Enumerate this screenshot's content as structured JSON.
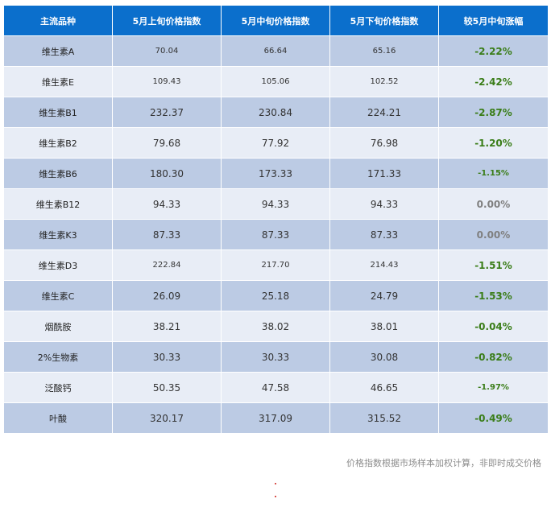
{
  "table": {
    "headers": [
      "主流品种",
      "5月上旬价格指数",
      "5月中旬价格指数",
      "5月下旬价格指数",
      "较5月中旬涨幅"
    ],
    "rows": [
      {
        "name": "维生素A",
        "early": "70.04",
        "mid": "66.64",
        "late": "65.16",
        "change": "-2.22%"
      },
      {
        "name": "维生素E",
        "early": "109.43",
        "mid": "105.06",
        "late": "102.52",
        "change": "-2.42%"
      },
      {
        "name": "维生素B1",
        "early": "232.37",
        "mid": "230.84",
        "late": "224.21",
        "change": "-2.87%"
      },
      {
        "name": "维生素B2",
        "early": "79.68",
        "mid": "77.92",
        "late": "76.98",
        "change": "-1.20%"
      },
      {
        "name": "维生素B6",
        "early": "180.30",
        "mid": "173.33",
        "late": "171.33",
        "change": "-1.15%"
      },
      {
        "name": "维生素B12",
        "early": "94.33",
        "mid": "94.33",
        "late": "94.33",
        "change": "0.00%"
      },
      {
        "name": "维生素K3",
        "early": "87.33",
        "mid": "87.33",
        "late": "87.33",
        "change": "0.00%"
      },
      {
        "name": "维生素D3",
        "early": "222.84",
        "mid": "217.70",
        "late": "214.43",
        "change": "-1.51%"
      },
      {
        "name": "维生素C",
        "early": "26.09",
        "mid": "25.18",
        "late": "24.79",
        "change": "-1.53%"
      },
      {
        "name": "烟酰胺",
        "early": "38.21",
        "mid": "38.02",
        "late": "38.01",
        "change": "-0.04%"
      },
      {
        "name": "2%生物素",
        "early": "30.33",
        "mid": "30.33",
        "late": "30.08",
        "change": "-0.82%"
      },
      {
        "name": "泛酸钙",
        "early": "50.35",
        "mid": "47.58",
        "late": "46.65",
        "change": "-1.97%"
      },
      {
        "name": "叶酸",
        "early": "320.17",
        "mid": "317.09",
        "late": "315.52",
        "change": "-0.49%"
      }
    ]
  },
  "note": "价格指数根据市场样本加权计算，非即时成交价格",
  "colors": {
    "header_bg": "#0b6fcc",
    "row_dark": "#bccbe4",
    "row_light": "#e8edf6",
    "change_down": "#3a7d18",
    "change_flat": "#7f7f7f"
  }
}
